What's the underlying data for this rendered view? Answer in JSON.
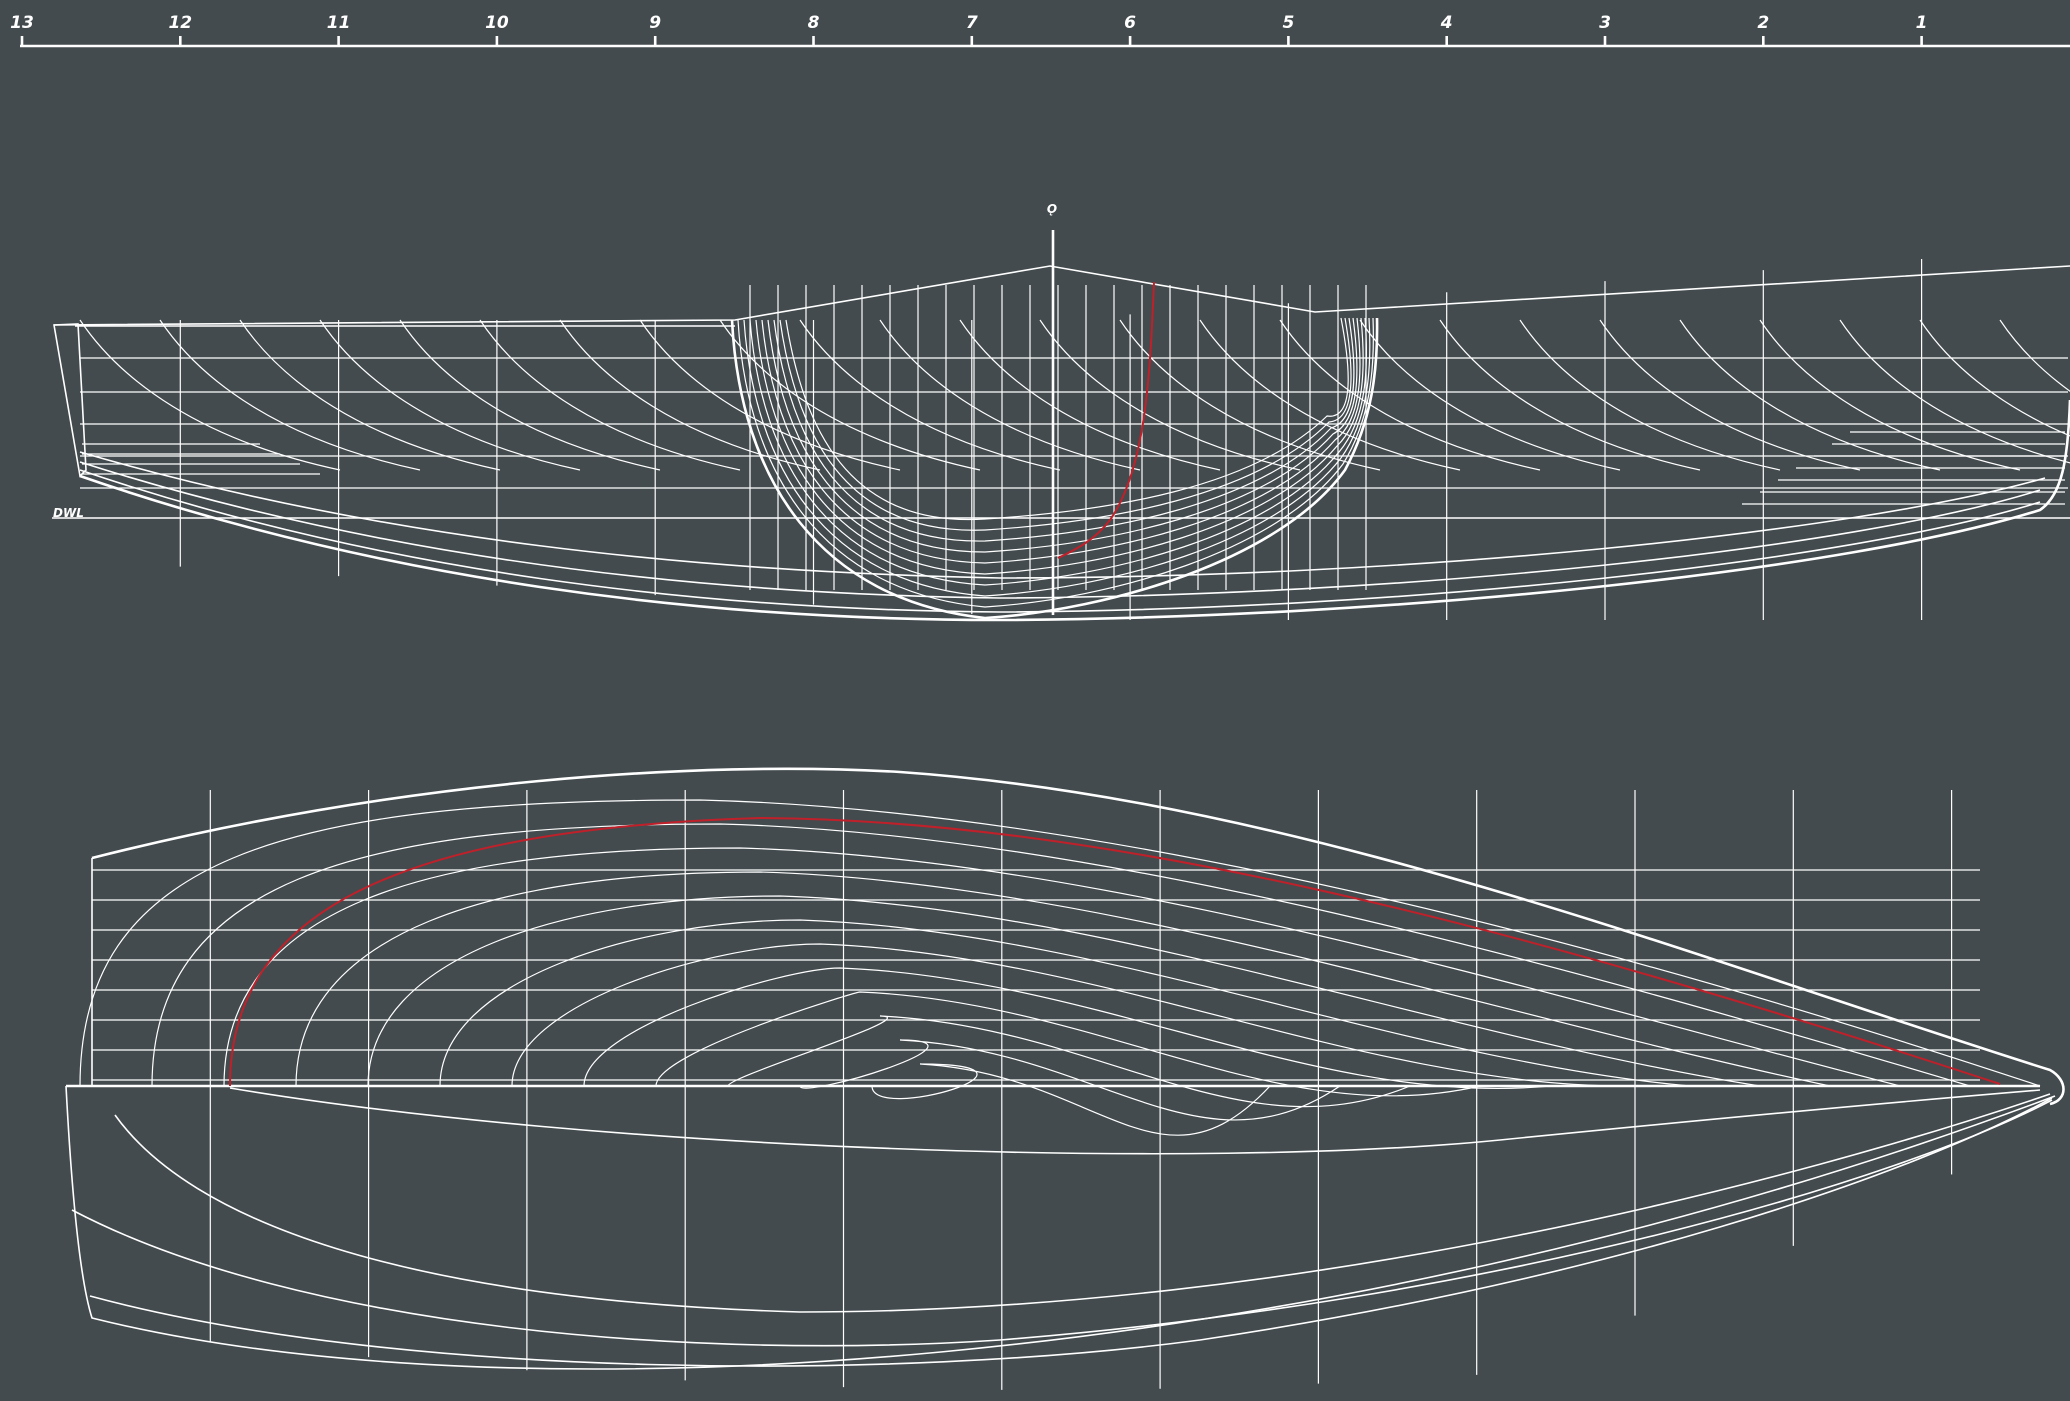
{
  "station_scale": {
    "labels": [
      "13",
      "12",
      "11",
      "10",
      "9",
      "8",
      "7",
      "6",
      "5",
      "4",
      "3",
      "2",
      "1"
    ]
  },
  "centerline_label": "Ǫ",
  "waterline_label": "DWL",
  "colors": {
    "background": "#434b4e",
    "lines": "#ffffff",
    "highlight": "#c0202a"
  }
}
